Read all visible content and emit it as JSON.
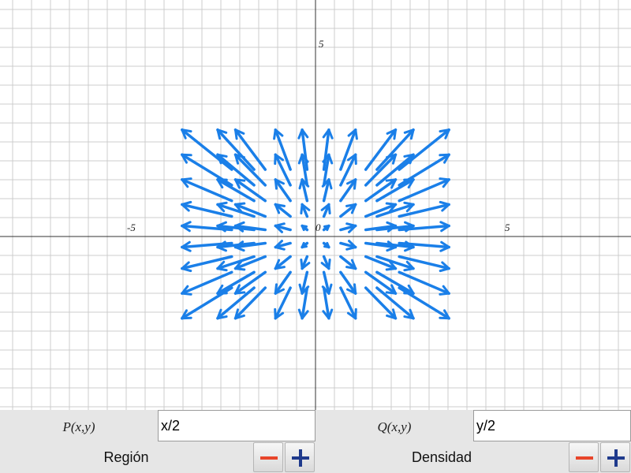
{
  "graph": {
    "x_ticks": [
      "-5",
      "0",
      "5"
    ],
    "y_ticks": [
      "5"
    ],
    "arrow_color": "#1a7fe8"
  },
  "chart_data": {
    "type": "vector-field",
    "field": {
      "P": "x/2",
      "Q": "y/2"
    },
    "xlim": [
      -9,
      9
    ],
    "ylim": [
      -5,
      6.5
    ],
    "grid": true
  },
  "controls": {
    "p_label": "P(x,y)",
    "p_value": "x/2",
    "q_label": "Q(x,y)",
    "q_value": "y/2",
    "region_label": "Región",
    "density_label": "Densidad"
  },
  "colors": {
    "panel_bg": "#e6e6e6",
    "minus": "#e8452a",
    "plus": "#1f3a8c"
  }
}
